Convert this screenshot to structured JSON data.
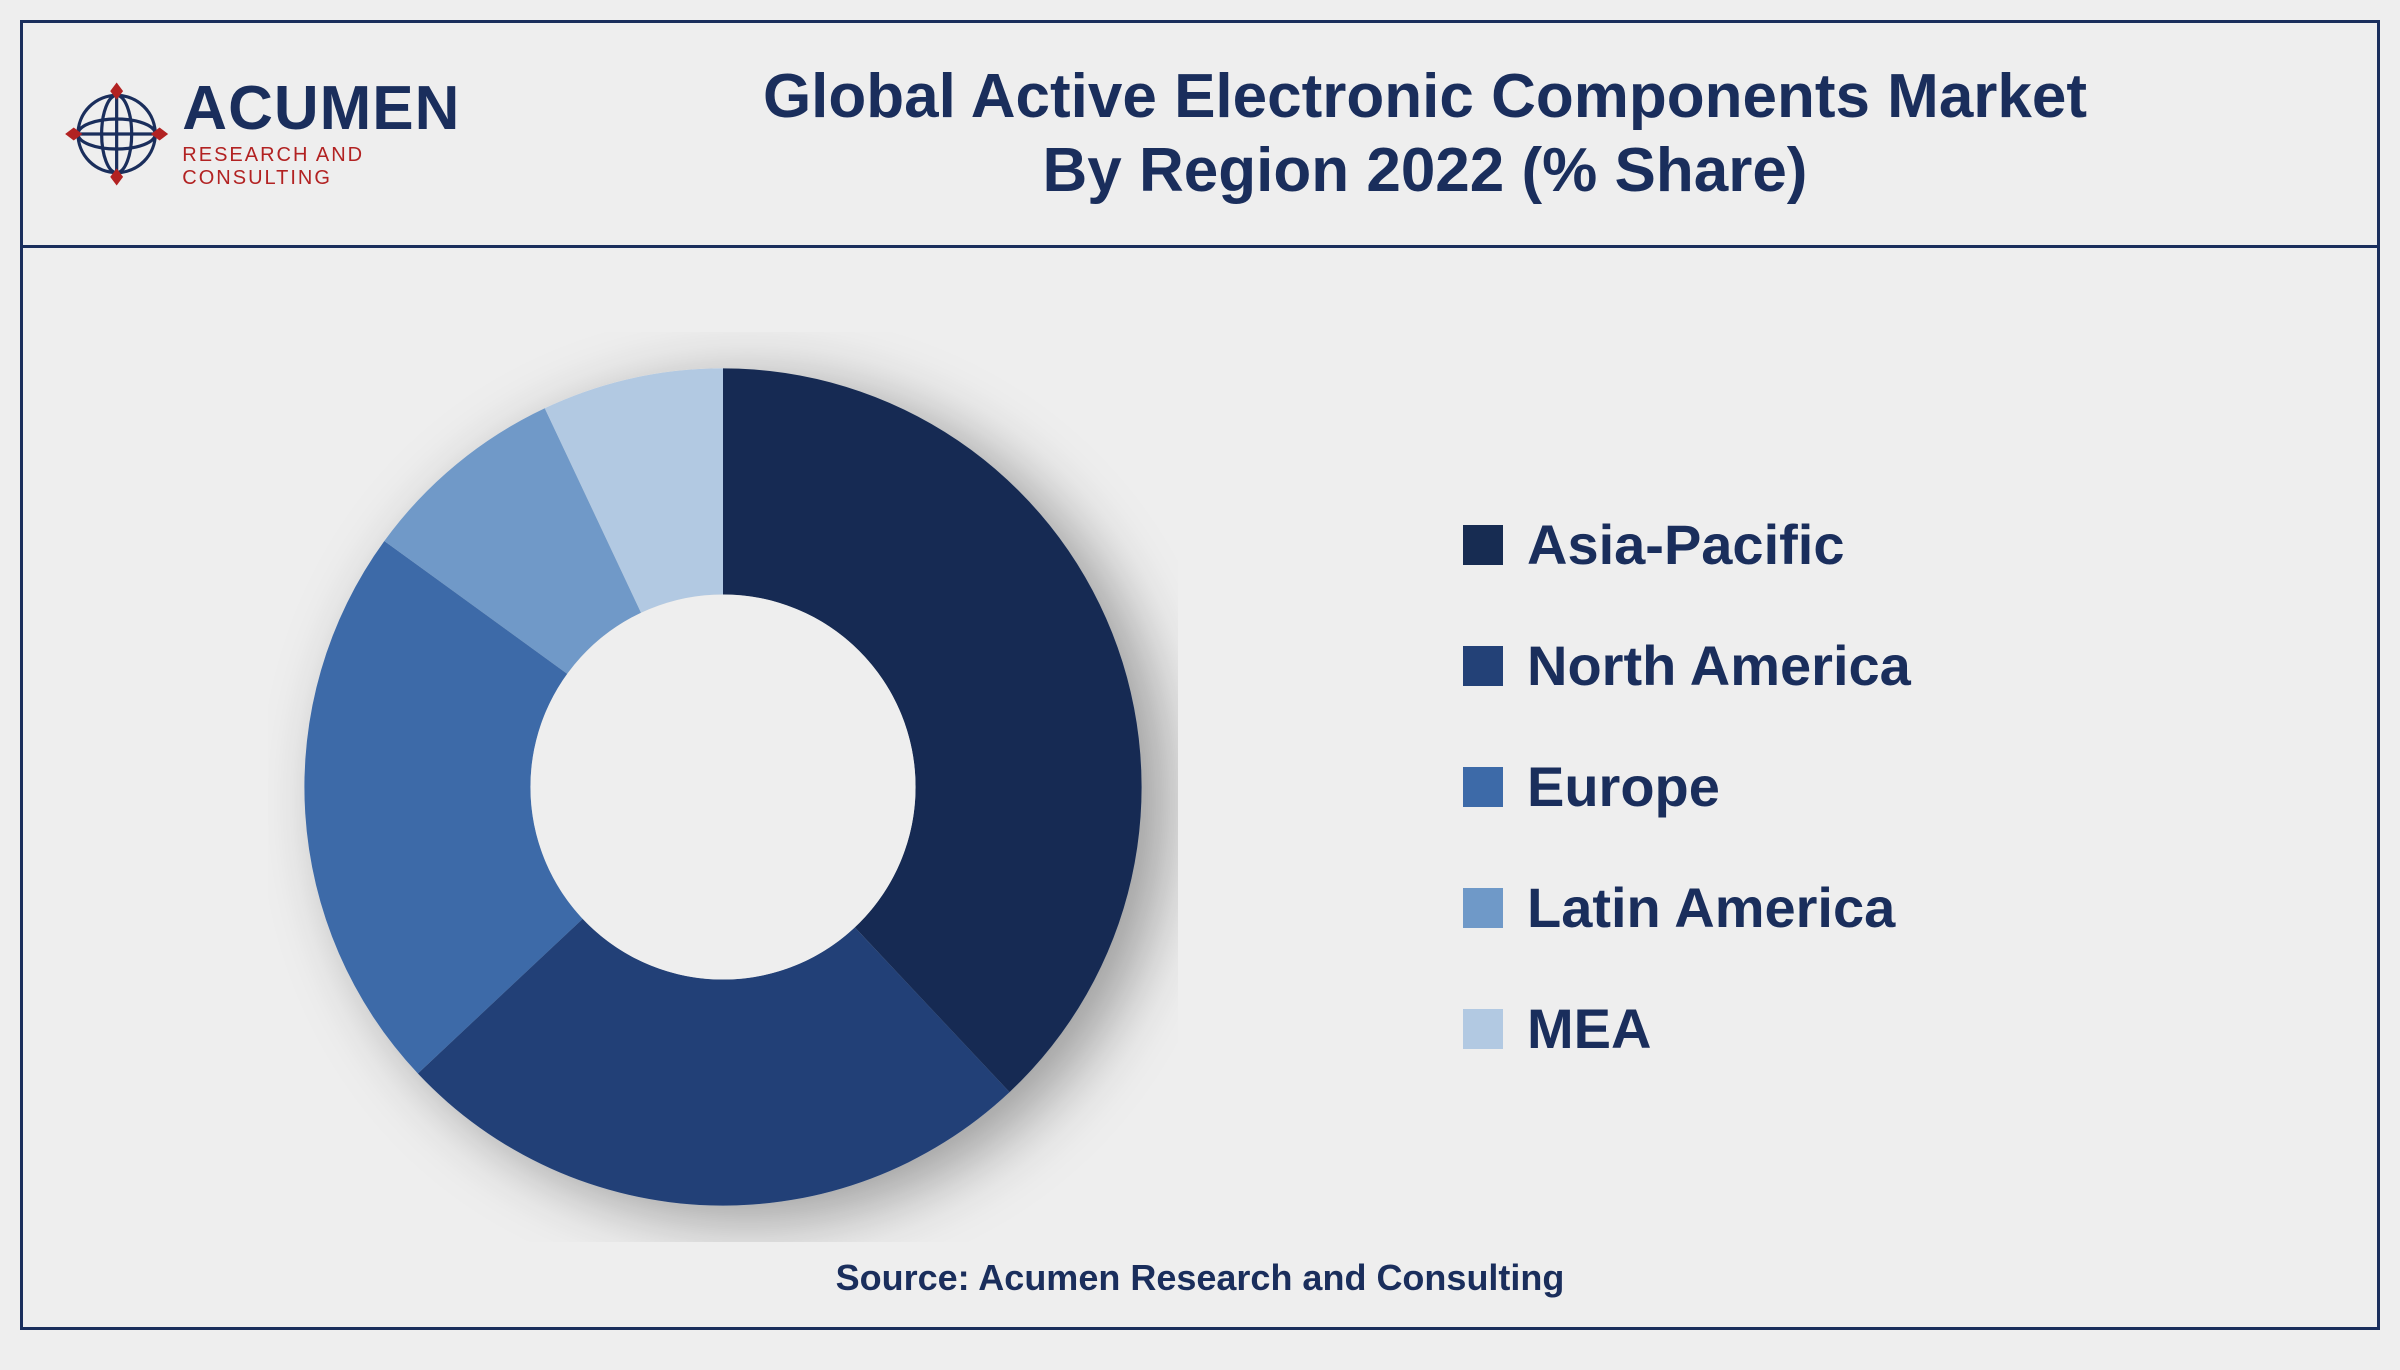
{
  "brand": {
    "name": "ACUMEN",
    "tagline": "RESEARCH AND CONSULTING",
    "name_color": "#1a2e5c",
    "tagline_color": "#b22222",
    "globe_stroke": "#1a2e5c",
    "globe_accent": "#b22222"
  },
  "title": {
    "line1": "Global Active Electronic Components Market",
    "line2": "By Region 2022 (% Share)",
    "color": "#1a2e5c",
    "fontsize": 62
  },
  "chart": {
    "type": "donut",
    "inner_radius_ratio": 0.46,
    "start_angle_deg": 0,
    "shadow_color": "rgba(0,0,0,0.35)",
    "shadow_blur": 18,
    "shadow_dx": 14,
    "shadow_dy": 8,
    "background_color": "#eeeeee",
    "slices": [
      {
        "label": "Asia-Pacific",
        "value": 38,
        "color": "#172c52"
      },
      {
        "label": "North America",
        "value": 25,
        "color": "#234177"
      },
      {
        "label": "Europe",
        "value": 22,
        "color": "#3d6aa8"
      },
      {
        "label": "Latin America",
        "value": 8,
        "color": "#6f99c8"
      },
      {
        "label": "MEA",
        "value": 7,
        "color": "#b2c9e2"
      }
    ]
  },
  "legend": {
    "label_color": "#1a2e5c",
    "label_fontsize": 56,
    "swatch_size": 40
  },
  "source": {
    "text": "Source: Acumen Research and Consulting",
    "color": "#1a2e5c",
    "fontsize": 36
  },
  "frame": {
    "border_color": "#1a2e5c",
    "border_width": 3,
    "page_bg": "#eeeeee"
  }
}
